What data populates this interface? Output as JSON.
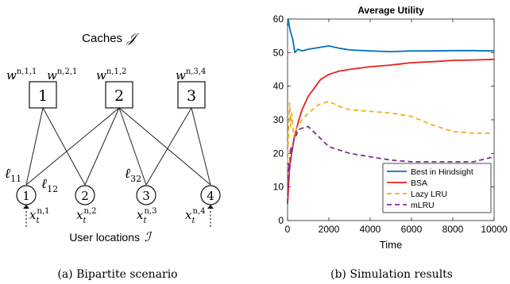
{
  "left": {
    "caches_title": "Caches",
    "caches_symbol": "𝒥",
    "caches": [
      "1",
      "2",
      "3"
    ],
    "cache_params": [
      {
        "base": "w",
        "sup": "n,1,1"
      },
      {
        "base": "w",
        "sup": "n,2,1"
      },
      {
        "base": "w",
        "sup": "n,1,2"
      },
      {
        "base": "w",
        "sup": "n,3,4"
      }
    ],
    "users": [
      "1",
      "2",
      "3",
      "4"
    ],
    "user_demands": [
      {
        "base": "x",
        "sup": "n,1",
        "sub": "t"
      },
      {
        "base": "x",
        "sup": "n,2",
        "sub": "t"
      },
      {
        "base": "x",
        "sup": "n,3",
        "sub": "t"
      },
      {
        "base": "x",
        "sup": "n,4",
        "sub": "t"
      }
    ],
    "link_labels": [
      {
        "base": "ℓ",
        "sub": "11"
      },
      {
        "base": "ℓ",
        "sub": "12"
      },
      {
        "base": "ℓ",
        "sub": "32"
      }
    ],
    "users_title": "User locations",
    "users_symbol": "ℐ",
    "caption": "(a) Bipartite scenario"
  },
  "right": {
    "caption": "(b) Simulation results"
  },
  "chart_data": {
    "type": "line",
    "title": "Average Utility",
    "xlabel": "Time",
    "ylabel": "",
    "xlim": [
      0,
      10000
    ],
    "ylim": [
      0,
      60
    ],
    "xticks": [
      "0",
      "2000",
      "4000",
      "6000",
      "8000",
      "10000"
    ],
    "yticks": [
      "0",
      "10",
      "20",
      "30",
      "40",
      "50",
      "60"
    ],
    "grid": false,
    "legend_position": "bottom-right",
    "series": [
      {
        "name": "Best in Hindsight",
        "color": "#0072BD",
        "style": "solid",
        "x": [
          1,
          30,
          80,
          150,
          250,
          350,
          500,
          700,
          1000,
          1500,
          2000,
          2500,
          3000,
          4000,
          5000,
          6000,
          7000,
          8000,
          9000,
          10000
        ],
        "y": [
          58,
          60,
          58,
          56,
          54,
          50,
          51,
          50.5,
          51,
          51.5,
          52,
          51.3,
          50.8,
          50.5,
          50.3,
          50.5,
          50.5,
          50.6,
          50.6,
          50.5
        ]
      },
      {
        "name": "BSA",
        "color": "#E8221A",
        "style": "solid",
        "x": [
          1,
          100,
          200,
          300,
          500,
          700,
          1000,
          1300,
          1600,
          2000,
          2500,
          3000,
          4000,
          5000,
          6000,
          7000,
          8000,
          9000,
          10000
        ],
        "y": [
          5,
          16,
          20,
          24,
          29,
          33,
          37,
          39.5,
          42,
          43.5,
          44.5,
          45,
          45.8,
          46.3,
          47,
          47.3,
          47.7,
          47.8,
          48
        ]
      },
      {
        "name": "Lazy LRU",
        "color": "#EDB120",
        "style": "dashed",
        "x": [
          1,
          40,
          100,
          150,
          200,
          300,
          400,
          500,
          700,
          1000,
          1500,
          2000,
          2500,
          3000,
          4000,
          5000,
          6000,
          7000,
          8000,
          9000,
          10000
        ],
        "y": [
          15,
          25,
          35,
          28,
          32,
          25,
          27,
          28,
          30,
          32,
          34.5,
          35.5,
          34,
          33,
          32.5,
          32,
          31,
          28.5,
          26.5,
          26,
          26
        ]
      },
      {
        "name": "mLRU",
        "color": "#7E2F8E",
        "style": "dashed",
        "x": [
          1,
          50,
          100,
          150,
          200,
          300,
          400,
          500,
          700,
          1000,
          1500,
          2000,
          3000,
          4000,
          5000,
          6000,
          7000,
          8000,
          9000,
          10000
        ],
        "y": [
          5,
          17,
          15,
          22,
          20,
          24,
          25,
          27,
          27.5,
          28,
          25,
          22,
          20,
          19,
          18,
          17.5,
          17.5,
          17.5,
          17.5,
          19
        ]
      }
    ]
  }
}
